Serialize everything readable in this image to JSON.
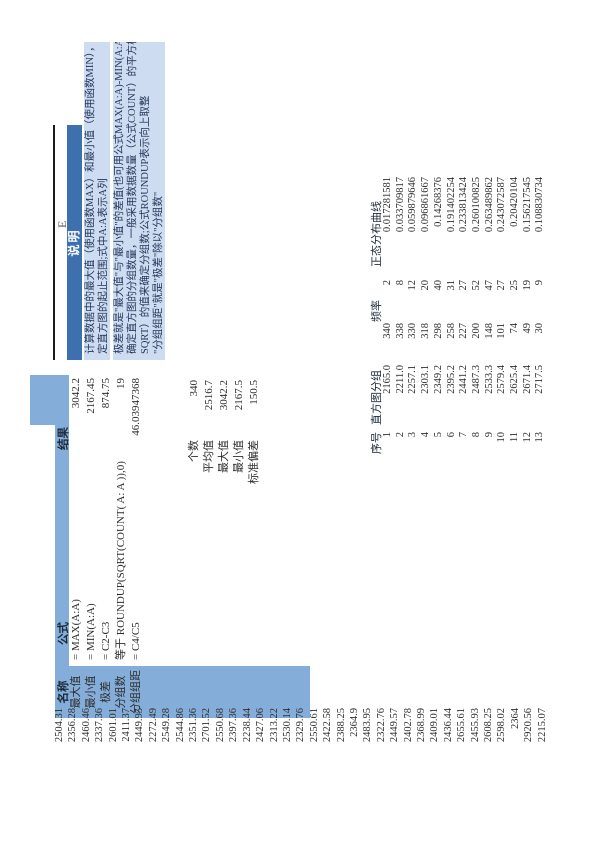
{
  "column_a_data": [
    "2504.31",
    "2356.28",
    "2460.46",
    "2337.36",
    "2601.01",
    "2411.37",
    "2449.95",
    "2272.49",
    "2549.28",
    "2544.86",
    "2351.36",
    "2701.52",
    "2550.68",
    "2397.36",
    "2238.44",
    "2427.06",
    "2313.22",
    "2530.14",
    "2329.76",
    "2550.61",
    "2422.58",
    "2388.25",
    "2364.9",
    "2483.95",
    "2322.76",
    "2449.57",
    "2402.78",
    "2368.99",
    "2409.01",
    "2436.44",
    "2655.61",
    "2455.93",
    "2608.25",
    "2598.02",
    "2364",
    "2920.56",
    "2215.07"
  ],
  "summary_table": {
    "header_name": "名称",
    "header_formula": "公式",
    "header_result": "结果",
    "labels": [
      "最大值",
      "最小值",
      "极差",
      "分组数",
      "分组组距"
    ],
    "formulas": [
      "= MAX(A:A)",
      "= MIN(A:A)",
      "= C2-C3",
      "等于 ROUNDUP(SQRT(COUNT( A: A )),0)",
      "= C4/C5"
    ],
    "results": [
      "3042.2",
      "2167.45",
      "874.75",
      "19",
      "46.03947368"
    ]
  },
  "notes": {
    "column_letter": "E",
    "header": "说明",
    "lines": [
      "计算数据中的最大值（使用函数MAX）和最小值（使用函数MIN），以确",
      "定直方图的起止范围;式中A:A表示A列",
      "极差就是\"最大值\"与\"最小值\"的差值(也可用公式MAX(A:A)-MIN(A:A)确定)",
      "确定直方图的分组数量，一般采用数据数量（公式COUNT）的平方根（",
      "SQRT）的值来确定分组数;公式ROUNDUP表示向上取整",
      "\"分组组距\"就是\"极差\"除以\"分组数\""
    ]
  },
  "stats_block": {
    "labels": [
      "个数",
      "平均值",
      "最大值",
      "最小值",
      "标准偏差"
    ],
    "values": [
      "340",
      "2516.7",
      "3042.2",
      "2167.5",
      "150.5"
    ]
  },
  "histogram_table": {
    "header_index": "序号",
    "header_bins": "直方图分组",
    "header_freq": "频率",
    "header_normal": "正态分布曲线",
    "index": [
      "1",
      "2",
      "3",
      "4",
      "5",
      "6",
      "7",
      "8",
      "9",
      "10",
      "11",
      "12",
      "13"
    ],
    "bins": [
      "2165.0",
      "2211.0",
      "2257.1",
      "2303.1",
      "2349.2",
      "2395.2",
      "2441.2",
      "2487.3",
      "2533.3",
      "2579.4",
      "2625.4",
      "2671.4",
      "2717.5"
    ],
    "remaining": [
      "340",
      "338",
      "330",
      "318",
      "298",
      "258",
      "227",
      "200",
      "148",
      "101",
      "74",
      "49",
      "30"
    ],
    "freq": [
      "2",
      "8",
      "12",
      "20",
      "40",
      "31",
      "27",
      "52",
      "47",
      "27",
      "25",
      "19",
      "9"
    ],
    "normal_curve": [
      "0.017281581",
      "0.033709817",
      "0.059879646",
      "0.096861667",
      "0.14268376",
      "0.191402254",
      "0.233813424",
      "0.260100825",
      "0.263489862",
      "0.243072587",
      "0.20420104",
      "0.156217545",
      "0.108830734"
    ]
  },
  "colors": {
    "header_fill": "#84add9",
    "note_header_fill": "#3e6fae",
    "note_line_fill": "#cddcf0"
  }
}
